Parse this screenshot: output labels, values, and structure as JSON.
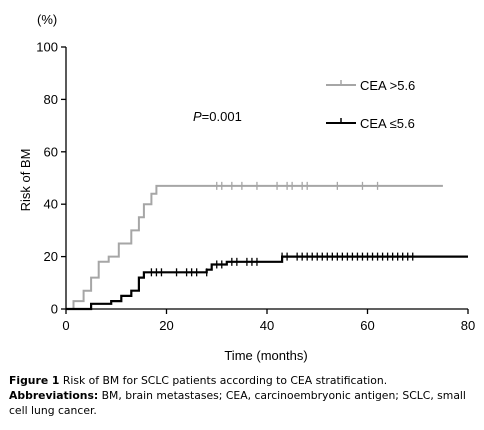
{
  "chart_data": {
    "type": "line",
    "subtype": "kaplan-meier-step",
    "y_unit": "(%)",
    "ylabel": "Risk of BM",
    "xlabel": "Time (months)",
    "xlim": [
      0,
      80
    ],
    "ylim": [
      0,
      100
    ],
    "x_ticks": [
      0,
      20,
      40,
      60,
      80
    ],
    "y_ticks": [
      0,
      20,
      40,
      60,
      80,
      100
    ],
    "grid": false,
    "legend_position": "top-right",
    "annotation": {
      "p_letter": "P",
      "p_rest": "=0.001"
    },
    "series": [
      {
        "name": "CEA >5.6",
        "color": "#a6a6a6",
        "steps": [
          [
            0,
            0
          ],
          [
            1.5,
            3
          ],
          [
            3.5,
            7
          ],
          [
            5,
            12
          ],
          [
            6.5,
            18
          ],
          [
            8.5,
            20
          ],
          [
            10.5,
            25
          ],
          [
            13,
            30
          ],
          [
            14.5,
            35
          ],
          [
            15.5,
            40
          ],
          [
            17,
            44
          ],
          [
            18,
            47
          ],
          [
            75,
            47
          ]
        ],
        "censored": [
          [
            30,
            47
          ],
          [
            31,
            47
          ],
          [
            33,
            47
          ],
          [
            35,
            47
          ],
          [
            38,
            47
          ],
          [
            42,
            47
          ],
          [
            44,
            47
          ],
          [
            45,
            47
          ],
          [
            47,
            47
          ],
          [
            48,
            47
          ],
          [
            54,
            47
          ],
          [
            59,
            47
          ],
          [
            62,
            47
          ]
        ]
      },
      {
        "name": "CEA ≤5.6",
        "color": "#000000",
        "steps": [
          [
            0,
            0
          ],
          [
            5,
            2
          ],
          [
            9,
            3
          ],
          [
            11,
            5
          ],
          [
            13,
            7
          ],
          [
            14.5,
            12
          ],
          [
            15.5,
            14
          ],
          [
            28,
            15
          ],
          [
            29,
            17
          ],
          [
            32,
            18
          ],
          [
            43,
            20
          ],
          [
            80,
            20
          ]
        ],
        "censored": [
          [
            17,
            14
          ],
          [
            18,
            14
          ],
          [
            19,
            14
          ],
          [
            22,
            14
          ],
          [
            24,
            14
          ],
          [
            25,
            14
          ],
          [
            26,
            14
          ],
          [
            28,
            14
          ],
          [
            30,
            17
          ],
          [
            31,
            17
          ],
          [
            33,
            18
          ],
          [
            34,
            18
          ],
          [
            36,
            18
          ],
          [
            37,
            18
          ],
          [
            38,
            18
          ],
          [
            43,
            20
          ],
          [
            44,
            20
          ],
          [
            46,
            20
          ],
          [
            47,
            20
          ],
          [
            48,
            20
          ],
          [
            49,
            20
          ],
          [
            50,
            20
          ],
          [
            51,
            20
          ],
          [
            52,
            20
          ],
          [
            53,
            20
          ],
          [
            54,
            20
          ],
          [
            55,
            20
          ],
          [
            56,
            20
          ],
          [
            57,
            20
          ],
          [
            58,
            20
          ],
          [
            59,
            20
          ],
          [
            60,
            20
          ],
          [
            61,
            20
          ],
          [
            62,
            20
          ],
          [
            63,
            20
          ],
          [
            64,
            20
          ],
          [
            65,
            20
          ],
          [
            66,
            20
          ],
          [
            67,
            20
          ],
          [
            68,
            20
          ],
          [
            69,
            20
          ]
        ]
      }
    ]
  },
  "caption": {
    "figure_label": "Figure 1",
    "figure_text": "Risk of BM for SCLC patients according to CEA stratification.",
    "abbr_label": "Abbreviations:",
    "abbr_text": "BM, brain metastases; CEA, carcinoembryonic antigen; SCLC, small cell lung cancer."
  }
}
